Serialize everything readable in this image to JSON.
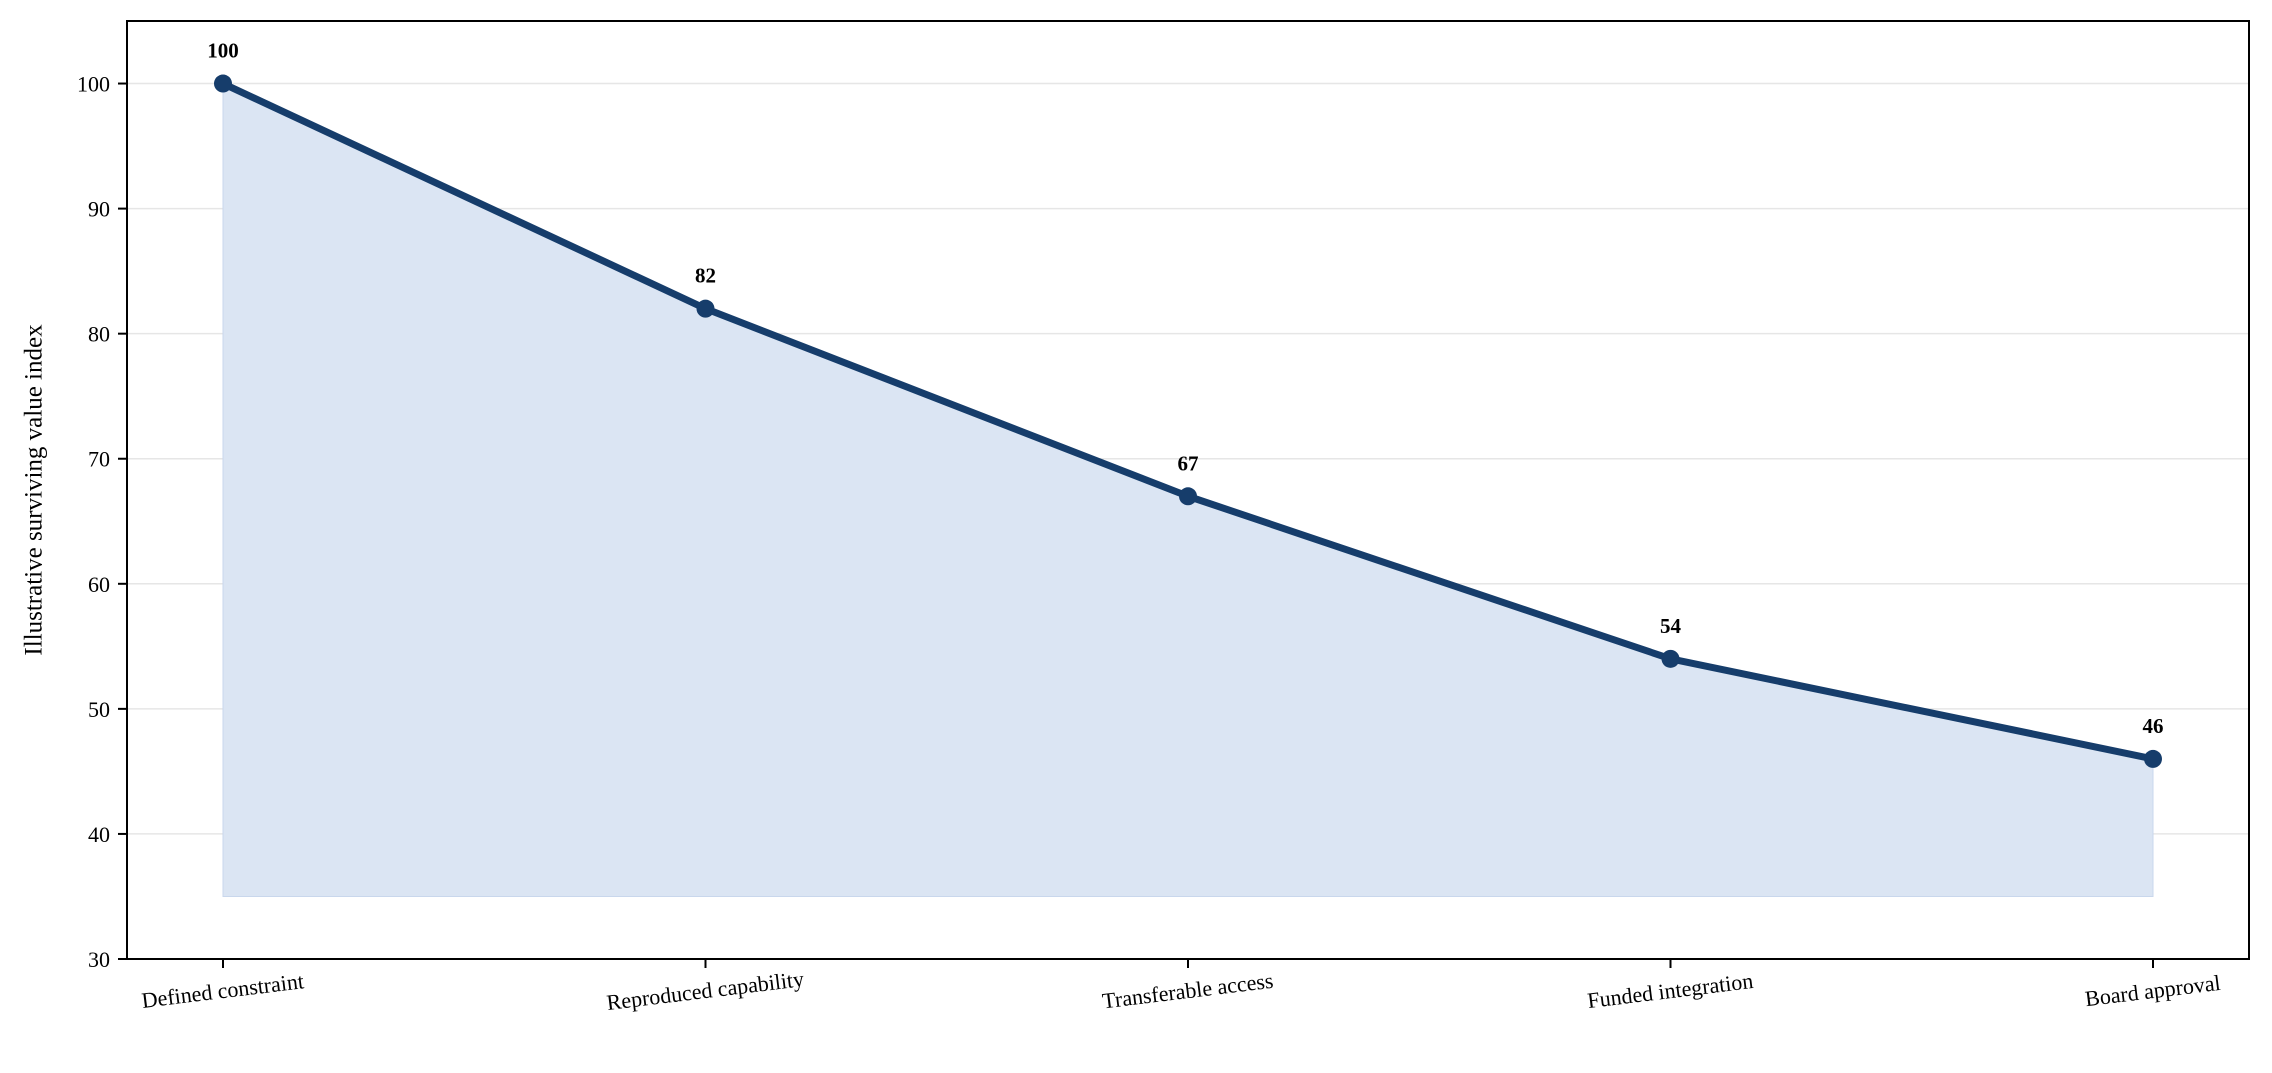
{
  "chart_data": {
    "type": "area",
    "categories": [
      "Defined constraint",
      "Reproduced capability",
      "Transferable access",
      "Funded integration",
      "Board approval"
    ],
    "values": [
      100,
      82,
      67,
      54,
      46
    ],
    "data_labels": [
      "100",
      "82",
      "67",
      "54",
      "46"
    ],
    "title": "",
    "xlabel": "",
    "ylabel": "Illustrative surviving value index",
    "ylim": [
      30,
      105
    ],
    "yticks": [
      30,
      40,
      50,
      60,
      70,
      80,
      90,
      100
    ],
    "ytick_labels": [
      "30",
      "40",
      "50",
      "60",
      "70",
      "80",
      "90",
      "100"
    ],
    "fill_baseline": 35,
    "grid": "horizontal",
    "legend": "none",
    "colors": {
      "line": "#163d6b",
      "marker": "#163d6b",
      "fill": "#dbe5f3",
      "grid": "#e6e6e6",
      "axis": "#000000"
    }
  }
}
